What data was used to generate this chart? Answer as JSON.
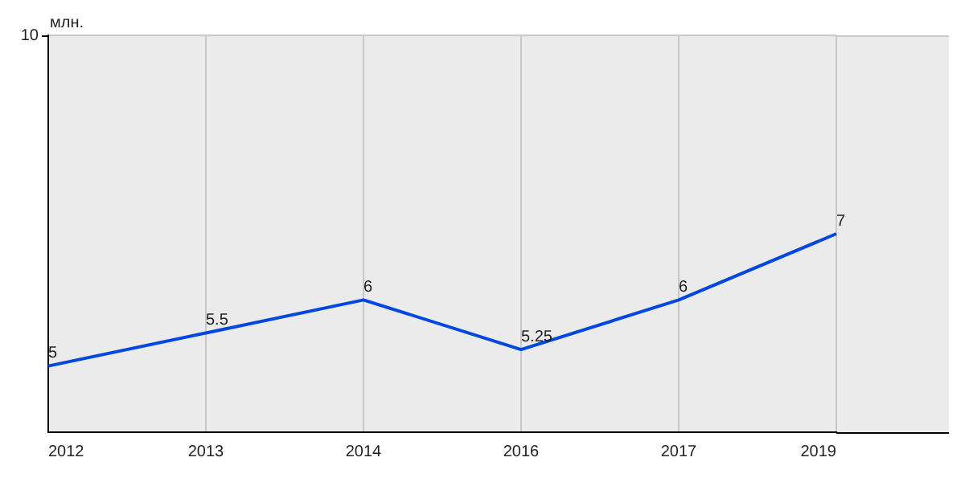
{
  "chart_data": {
    "type": "line",
    "ylabel": "млн.",
    "categories": [
      "2012",
      "2013",
      "2014",
      "2016",
      "2017",
      "2019"
    ],
    "series": [
      {
        "color": "#0047e0",
        "values": [
          5,
          5.5,
          6,
          5.25,
          6,
          7
        ]
      }
    ],
    "ylim": [
      4,
      10
    ],
    "annotations": [
      "10"
    ],
    "grid": true,
    "data_labels": true,
    "marker": "none",
    "line_style": "solid"
  }
}
